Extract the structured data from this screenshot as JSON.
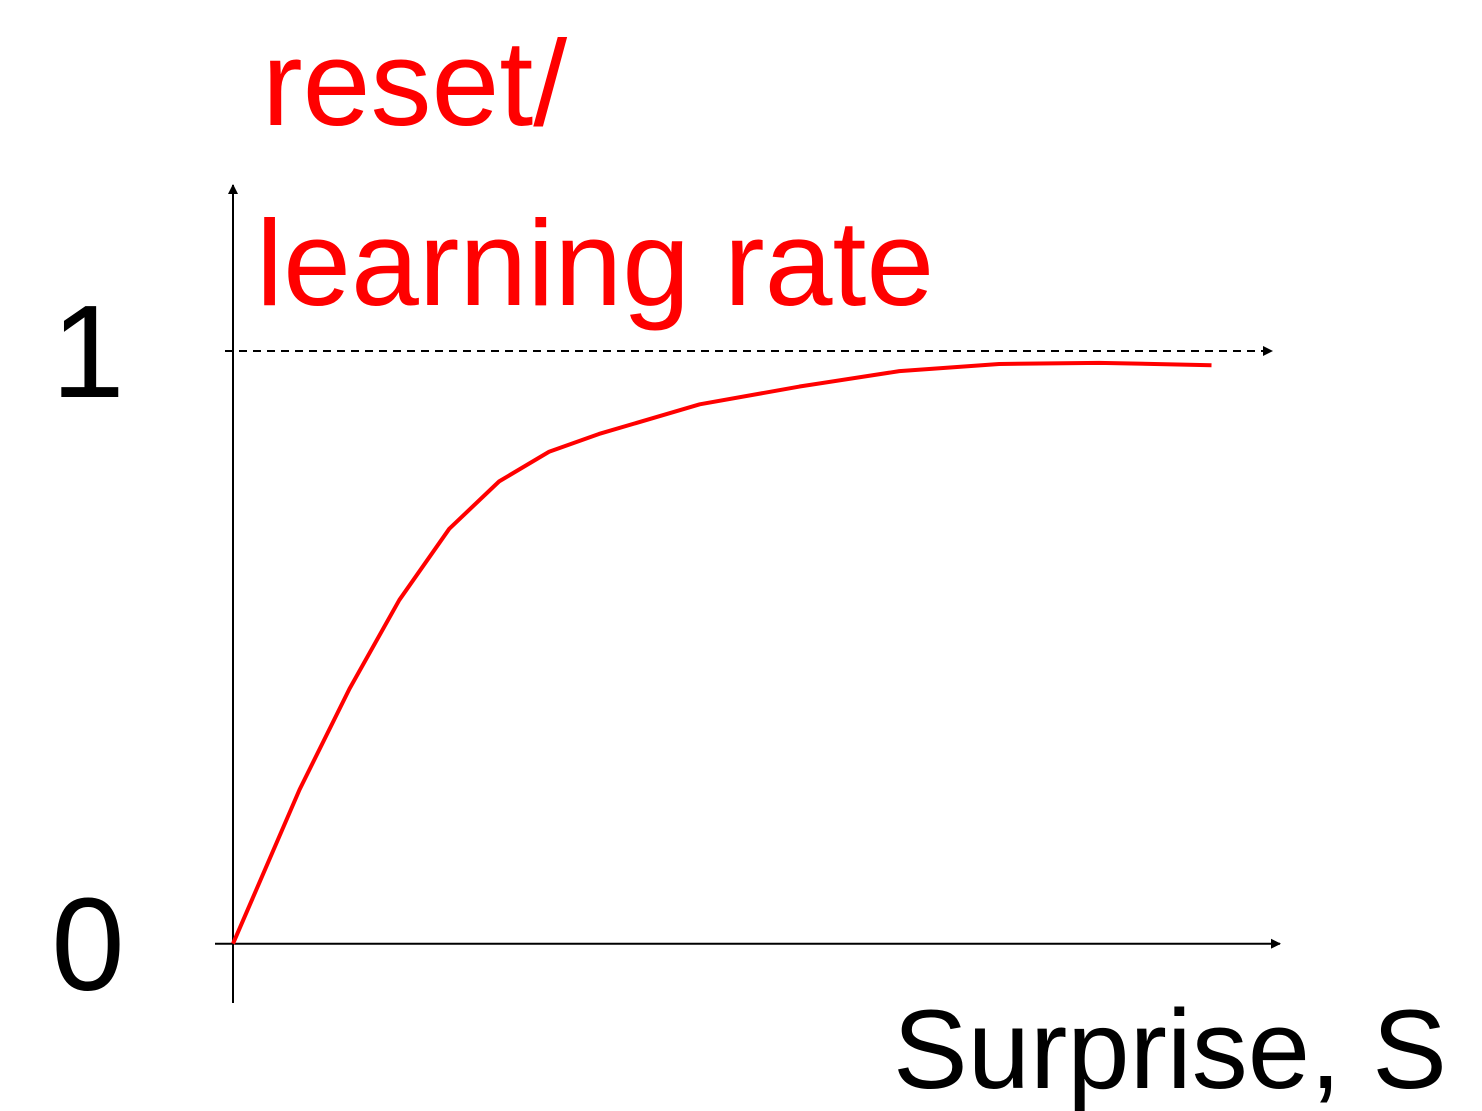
{
  "chart_data": {
    "type": "line",
    "ylabel": [
      "reset/",
      "learning rate"
    ],
    "xlabel": "Surprise, S",
    "x": [
      0,
      0.68,
      1.19,
      1.7,
      2.21,
      2.72,
      3.23,
      3.74,
      4.77,
      5.79,
      6.81,
      7.83,
      8.85,
      10
    ],
    "series": [
      {
        "color": "#ff0000",
        "values": [
          0,
          0.26,
          0.43,
          0.58,
          0.7,
          0.78,
          0.83,
          0.86,
          0.91,
          0.94,
          0.966,
          0.978,
          0.98,
          0.976
        ]
      }
    ],
    "xlim": [
      0,
      10.7
    ],
    "ylim": [
      -0.1,
      1.28
    ],
    "yticks": [
      0,
      1
    ],
    "ylabel_color": "#ff0000"
  }
}
